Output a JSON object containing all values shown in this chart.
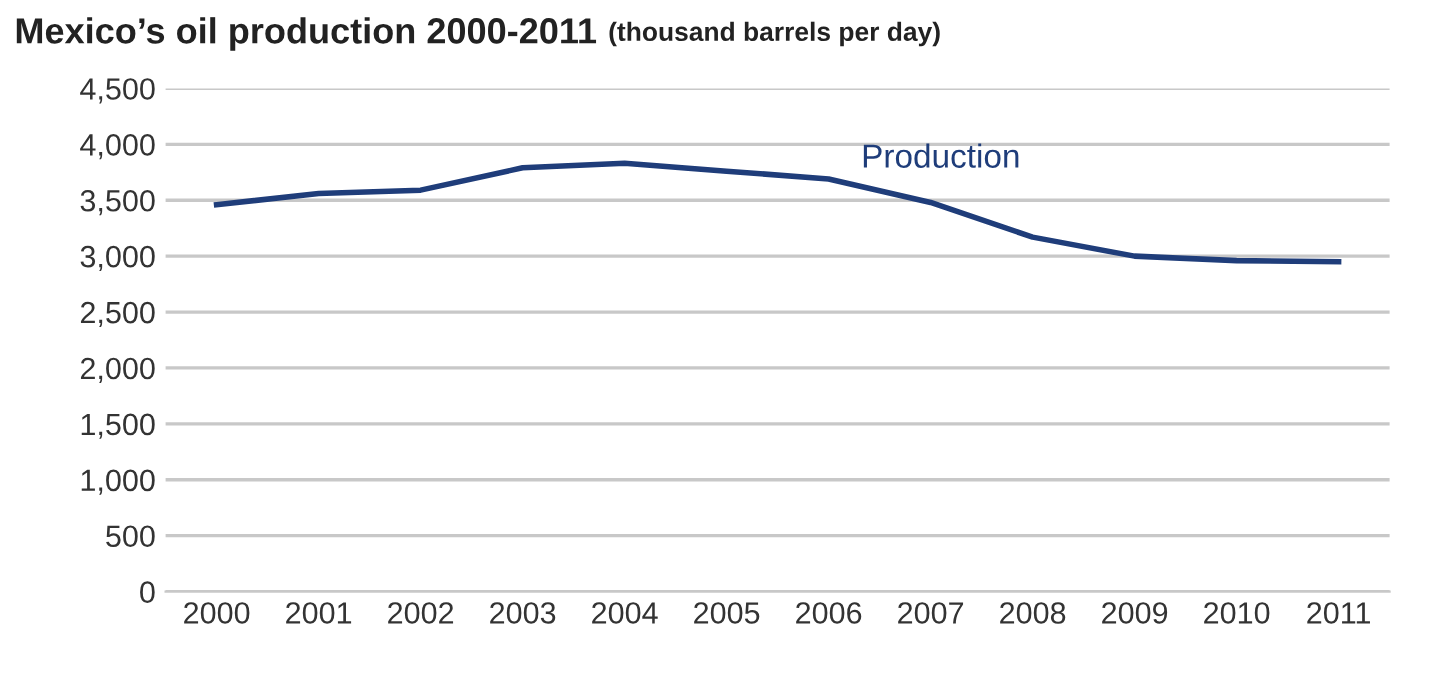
{
  "chart_data": {
    "type": "line",
    "title": "Mexico’s oil production 2000-2011",
    "subtitle": "(thousand barrels per day)",
    "categories": [
      "2000",
      "2001",
      "2002",
      "2003",
      "2004",
      "2005",
      "2006",
      "2007",
      "2008",
      "2009",
      "2010",
      "2011"
    ],
    "series": [
      {
        "name": "Production",
        "color": "#1f3d7a",
        "values": [
          3460,
          3560,
          3590,
          3790,
          3830,
          3760,
          3690,
          3480,
          3170,
          3000,
          2960,
          2950
        ]
      }
    ],
    "ylim": [
      0,
      4500
    ],
    "yticks": [
      {
        "value": 0,
        "label": "0"
      },
      {
        "value": 500,
        "label": "500"
      },
      {
        "value": 1000,
        "label": "1,000"
      },
      {
        "value": 1500,
        "label": "1,500"
      },
      {
        "value": 2000,
        "label": "2,000"
      },
      {
        "value": 2500,
        "label": "2,500"
      },
      {
        "value": 3000,
        "label": "3,000"
      },
      {
        "value": 3500,
        "label": "3,500"
      },
      {
        "value": 4000,
        "label": "4,000"
      },
      {
        "value": 4500,
        "label": "4,500"
      }
    ],
    "grid": "y",
    "legend": false,
    "marker": "none",
    "line_style": "solid"
  }
}
